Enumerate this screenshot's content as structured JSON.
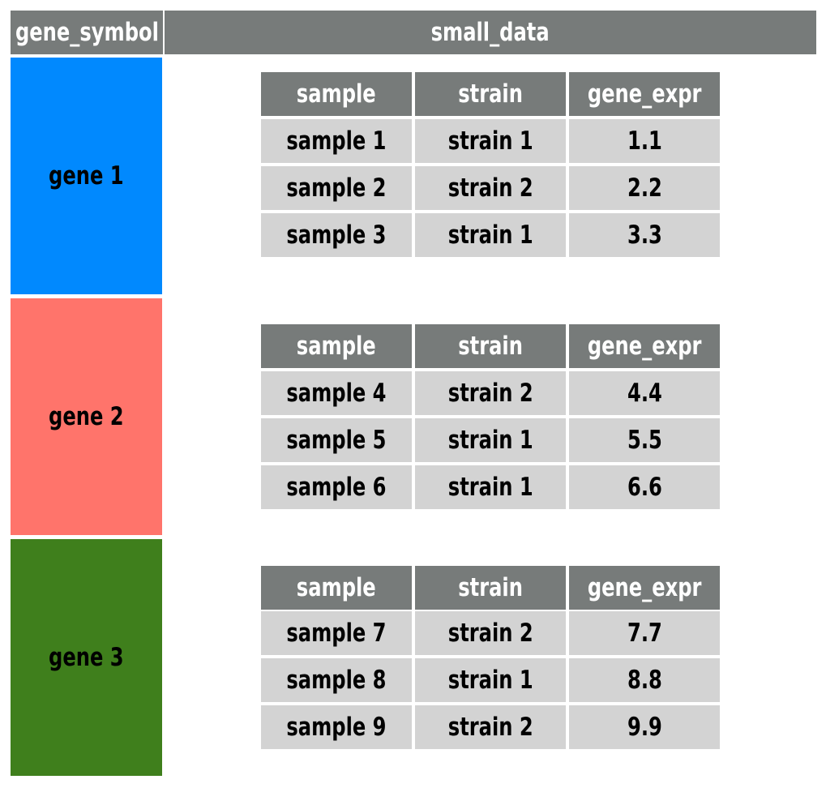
{
  "header": {
    "gene_symbol": "gene_symbol",
    "small_data": "small_data"
  },
  "columns": [
    "sample",
    "strain",
    "gene_expr"
  ],
  "groups": [
    {
      "gene": "gene 1",
      "color": "#0189fe",
      "rows": [
        [
          "sample 1",
          "strain 1",
          "1.1"
        ],
        [
          "sample 2",
          "strain 2",
          "2.2"
        ],
        [
          "sample 3",
          "strain 1",
          "3.3"
        ]
      ]
    },
    {
      "gene": "gene 2",
      "color": "#ff746b",
      "rows": [
        [
          "sample 4",
          "strain 2",
          "4.4"
        ],
        [
          "sample 5",
          "strain 1",
          "5.5"
        ],
        [
          "sample 6",
          "strain 1",
          "6.6"
        ]
      ]
    },
    {
      "gene": "gene 3",
      "color": "#3f7f1c",
      "rows": [
        [
          "sample 7",
          "strain 2",
          "7.7"
        ],
        [
          "sample 8",
          "strain 1",
          "8.8"
        ],
        [
          "sample 9",
          "strain 2",
          "9.9"
        ]
      ]
    }
  ]
}
